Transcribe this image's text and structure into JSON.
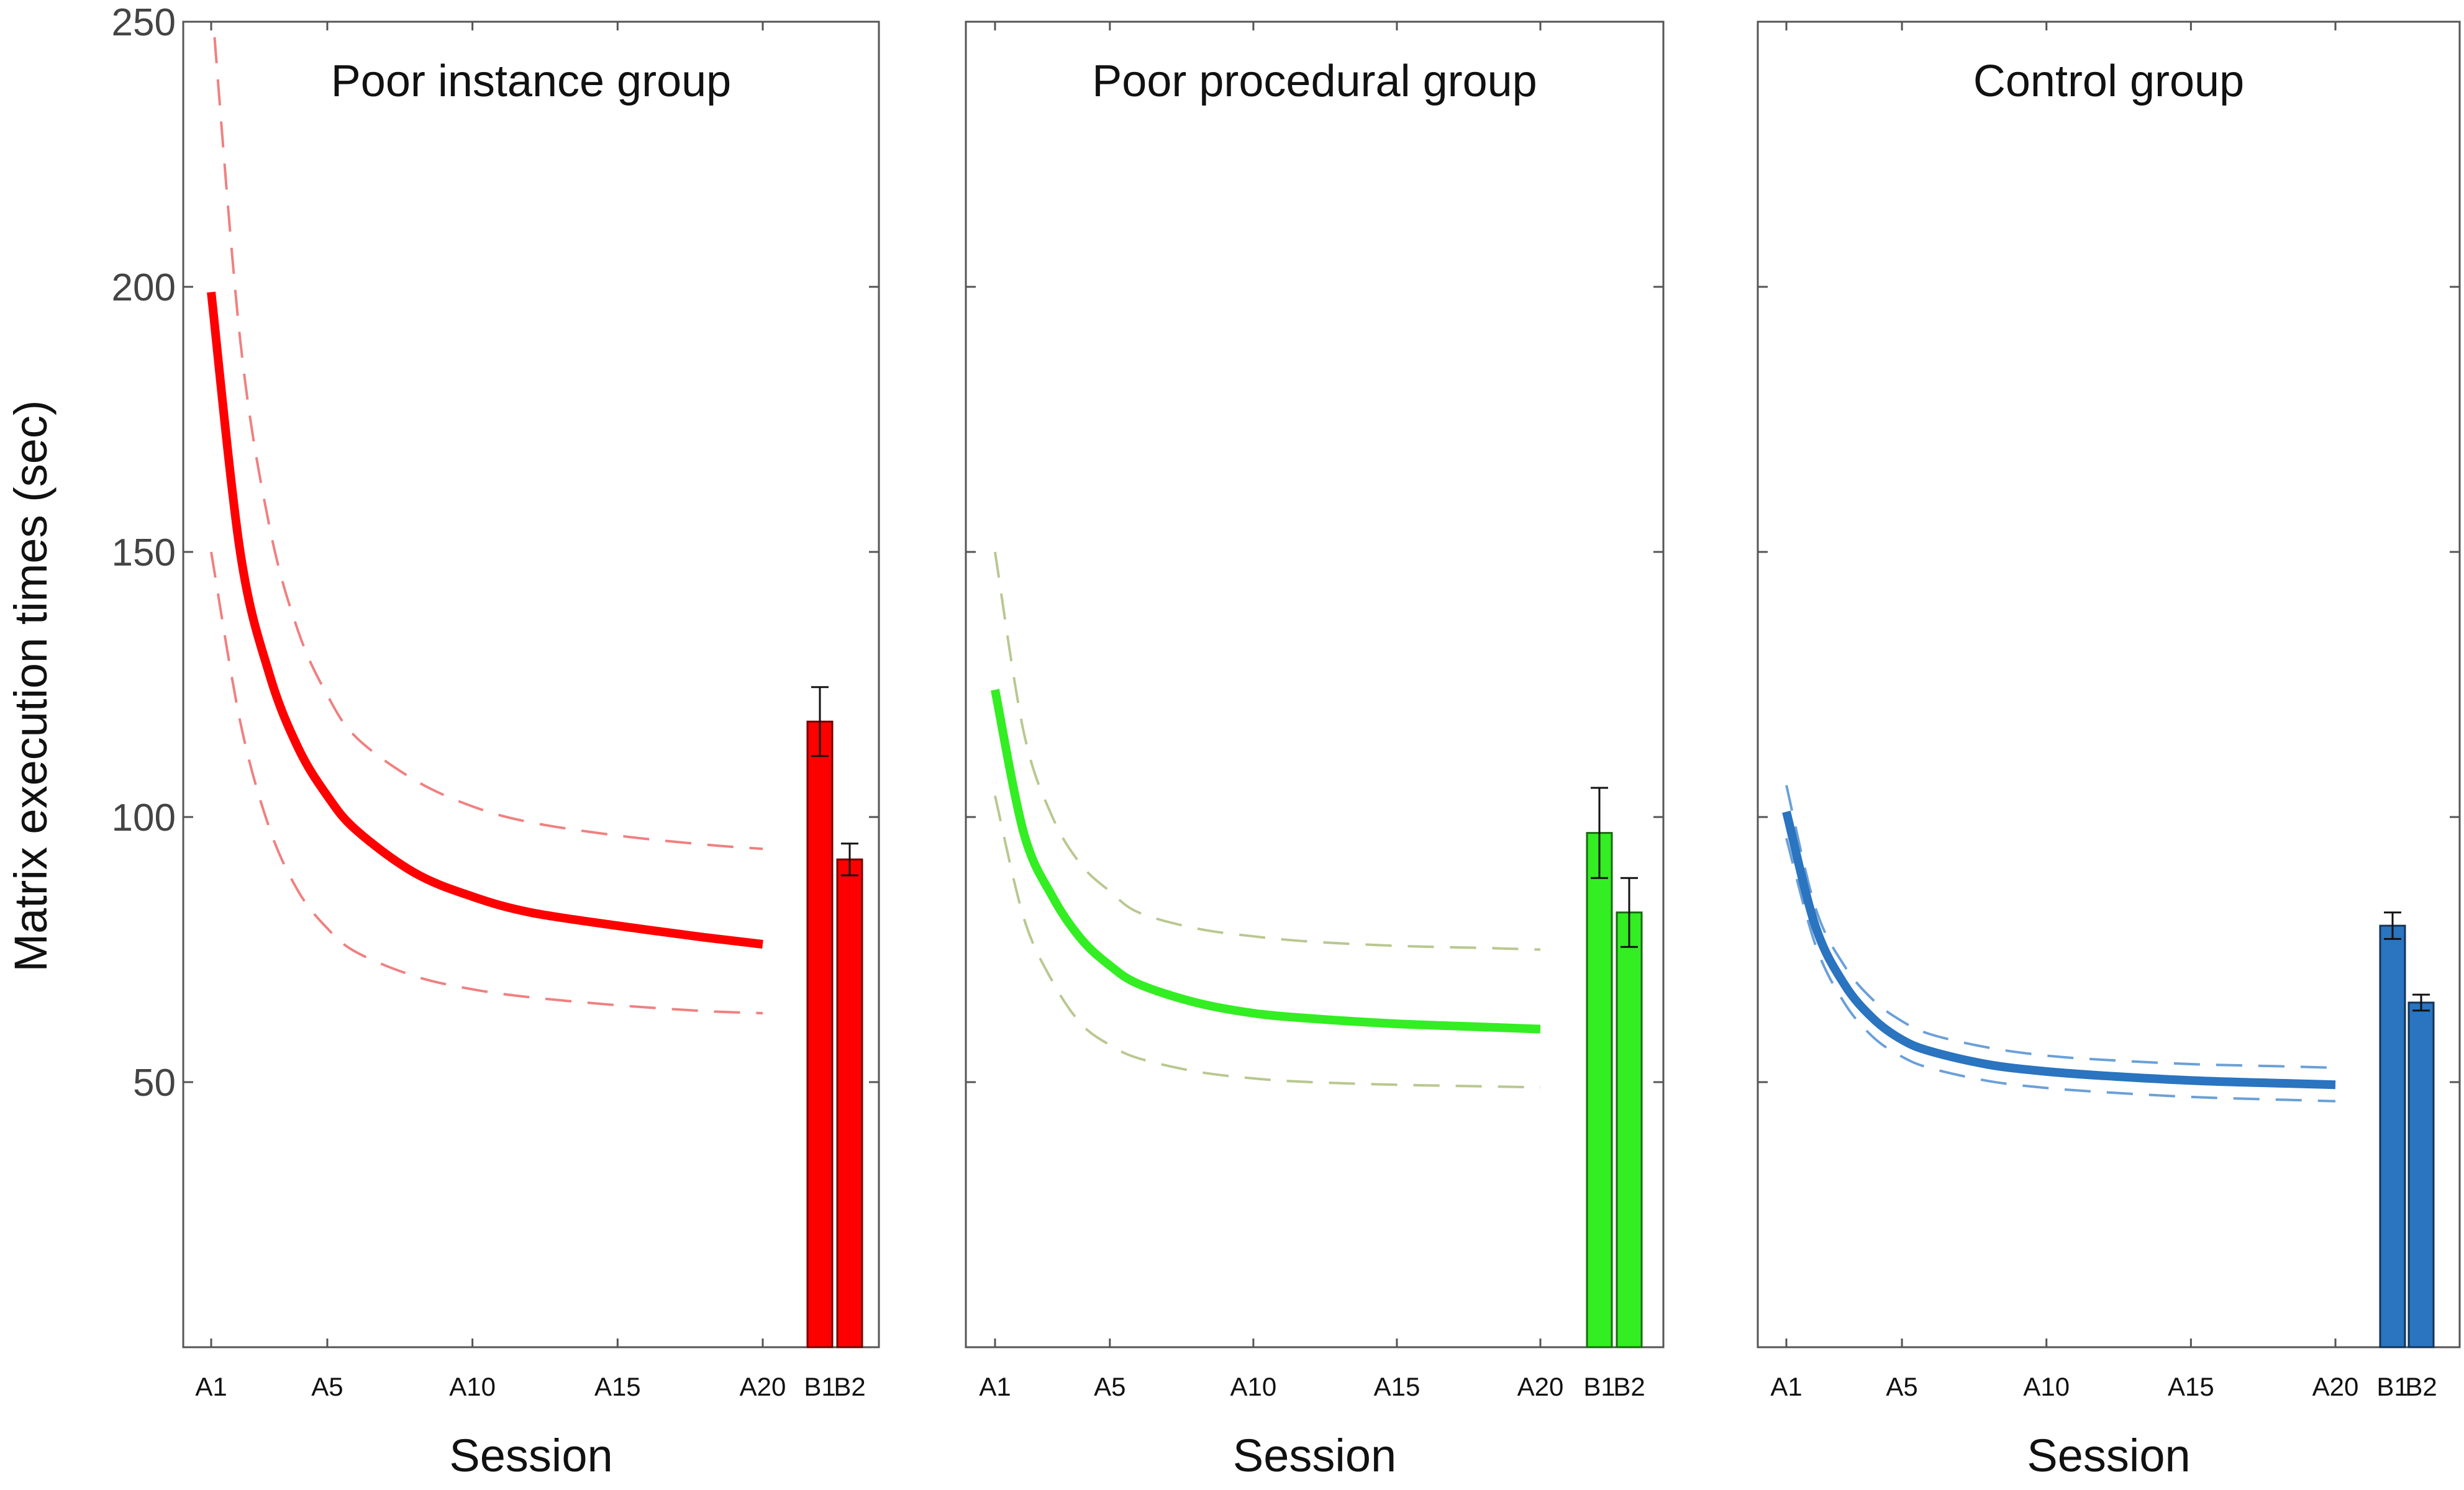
{
  "figure": {
    "ylabel": "Matrix execution times (sec)"
  },
  "chart_data": [
    {
      "type": "line",
      "title": "Poor instance group",
      "xlabel": "Session",
      "ylabel": "Matrix execution times (sec)",
      "ylim": [
        0,
        250
      ],
      "yticks": [
        50,
        100,
        150,
        200,
        250
      ],
      "x_tick_labels": [
        "A1",
        "A5",
        "A10",
        "A15",
        "A20",
        "B1",
        "B2"
      ],
      "color": "#ff0000",
      "ci_color": "#f08080",
      "fit": {
        "x": [
          1,
          2,
          3,
          4,
          5,
          6,
          8,
          10,
          12,
          15,
          18,
          20
        ],
        "mean": [
          199,
          150,
          127,
          113,
          104,
          97.5,
          89.5,
          85,
          82,
          79.5,
          77.3,
          76
        ],
        "ci_upper": [
          255,
          190,
          155,
          135,
          123,
          115,
          107,
          102,
          99,
          96.5,
          94.8,
          94
        ],
        "ci_lower": [
          150,
          118,
          98,
          86,
          79,
          74.5,
          70,
          67.5,
          66,
          64.5,
          63.4,
          63
        ]
      },
      "bars": {
        "categories": [
          "B1",
          "B2"
        ],
        "values": [
          118,
          92
        ],
        "errors": [
          6.5,
          3
        ]
      }
    },
    {
      "type": "line",
      "title": "Poor procedural group",
      "xlabel": "Session",
      "ylabel": "Matrix execution times (sec)",
      "ylim": [
        0,
        250
      ],
      "yticks": [
        50,
        100,
        150,
        200,
        250
      ],
      "x_tick_labels": [
        "A1",
        "A5",
        "A10",
        "A15",
        "A20",
        "B1",
        "B2"
      ],
      "color": "#33ee22",
      "ci_color": "#b8c890",
      "fit": {
        "x": [
          1,
          2,
          3,
          4,
          5,
          6,
          8,
          10,
          12,
          15,
          18,
          20
        ],
        "mean": [
          124,
          97,
          85,
          77,
          72,
          68.5,
          65,
          63,
          62,
          61,
          60.4,
          60
        ],
        "ci_upper": [
          150,
          116,
          100,
          91,
          86,
          82,
          79,
          77.5,
          76.5,
          75.7,
          75.3,
          75
        ],
        "ci_lower": [
          104,
          81,
          69,
          61,
          57,
          54.5,
          52,
          50.7,
          50,
          49.5,
          49.2,
          49
        ]
      },
      "bars": {
        "categories": [
          "B1",
          "B2"
        ],
        "values": [
          97,
          82
        ],
        "errors": [
          8.5,
          6.5
        ]
      }
    },
    {
      "type": "line",
      "title": "Control group",
      "xlabel": "Session",
      "ylabel": "Matrix execution times (sec)",
      "ylim": [
        0,
        250
      ],
      "yticks": [
        50,
        100,
        150,
        200,
        250
      ],
      "x_tick_labels": [
        "A1",
        "A5",
        "A10",
        "A15",
        "A20",
        "B1",
        "B2"
      ],
      "color": "#2a74c0",
      "ci_color": "#6aa0d8",
      "fit": {
        "x": [
          1,
          2,
          3,
          4,
          5,
          6,
          8,
          10,
          12,
          15,
          18,
          20
        ],
        "mean": [
          101,
          79.5,
          68.5,
          62,
          58,
          55.8,
          53.3,
          52,
          51.2,
          50.3,
          49.8,
          49.5
        ],
        "ci_upper": [
          106,
          83,
          72,
          65.5,
          61.5,
          59,
          56.5,
          55,
          54.2,
          53.4,
          53,
          52.7
        ],
        "ci_lower": [
          96,
          76,
          65,
          58.5,
          54.8,
          52.6,
          50.2,
          48.9,
          48.1,
          47.2,
          46.7,
          46.4
        ]
      },
      "bars": {
        "categories": [
          "B1",
          "B2"
        ],
        "values": [
          79.5,
          65
        ],
        "errors": [
          2.5,
          1.5
        ]
      }
    }
  ]
}
